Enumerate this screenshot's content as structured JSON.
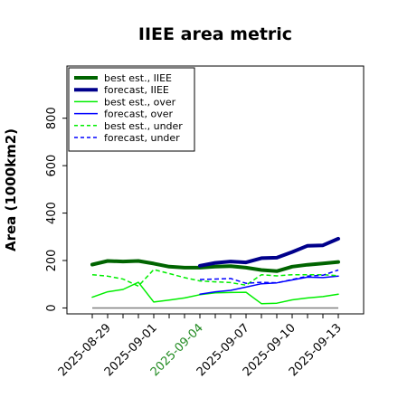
{
  "chart_data": {
    "type": "line",
    "title": "IIEE area metric",
    "xlabel": "",
    "ylabel": "Area (1000km2)",
    "ylim": [
      -25,
      1020
    ],
    "yticks": [
      0,
      200,
      400,
      600,
      800
    ],
    "xtick_labels": [
      "2025-08-29",
      "2025-09-01",
      "2025-09-04",
      "2025-09-07",
      "2025-09-10",
      "2025-09-13"
    ],
    "highlight_tick": "2025-09-04",
    "highlight_color": "#228b22",
    "grid": false,
    "legend_position": "top-left",
    "x_dates": [
      "2025-08-28",
      "2025-08-29",
      "2025-08-30",
      "2025-08-31",
      "2025-09-01",
      "2025-09-02",
      "2025-09-03",
      "2025-09-04",
      "2025-09-05",
      "2025-09-06",
      "2025-09-07",
      "2025-09-08",
      "2025-09-09",
      "2025-09-10",
      "2025-09-11",
      "2025-09-12",
      "2025-09-13"
    ],
    "series": [
      {
        "name": "best est., IIEE",
        "color": "#006400",
        "style": "solid",
        "width": 4,
        "values": [
          183,
          198,
          196,
          198,
          187,
          174,
          170,
          170,
          174,
          176,
          170,
          160,
          155,
          174,
          182,
          188,
          194
        ]
      },
      {
        "name": "forecast, IIEE",
        "color": "#00008b",
        "style": "solid",
        "width": 4,
        "values": [
          null,
          null,
          null,
          null,
          null,
          null,
          null,
          178,
          190,
          196,
          192,
          210,
          212,
          236,
          262,
          264,
          292
        ]
      },
      {
        "name": "best est., over",
        "color": "#00ee00",
        "style": "solid",
        "width": 1.5,
        "values": [
          45,
          68,
          78,
          108,
          25,
          33,
          42,
          56,
          64,
          65,
          66,
          18,
          20,
          34,
          42,
          48,
          58
        ]
      },
      {
        "name": "forecast, over",
        "color": "#0000ff",
        "style": "solid",
        "width": 1.5,
        "values": [
          null,
          null,
          null,
          null,
          null,
          null,
          null,
          58,
          68,
          74,
          88,
          102,
          106,
          118,
          130,
          128,
          134
        ]
      },
      {
        "name": "best est., under",
        "color": "#00ee00",
        "style": "dashed",
        "width": 1.5,
        "values": [
          140,
          134,
          122,
          92,
          162,
          145,
          128,
          114,
          110,
          107,
          96,
          140,
          135,
          140,
          140,
          140,
          136
        ]
      },
      {
        "name": "forecast, under",
        "color": "#0000ff",
        "style": "dashed",
        "width": 1.5,
        "values": [
          null,
          null,
          null,
          null,
          null,
          null,
          null,
          120,
          122,
          124,
          104,
          108,
          106,
          120,
          134,
          138,
          160
        ]
      }
    ],
    "baseline": {
      "y": 0,
      "color": "#808080"
    }
  }
}
